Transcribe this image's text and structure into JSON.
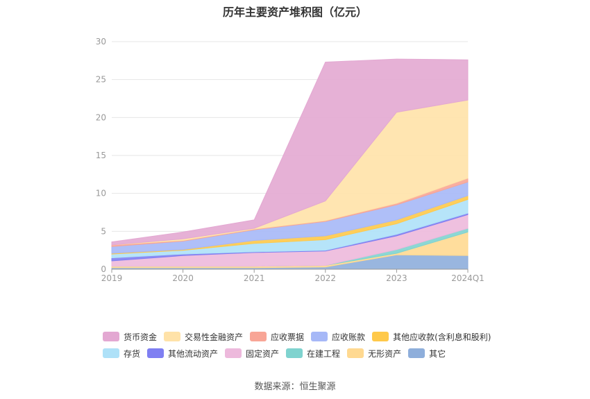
{
  "title": "历年主要资产堆积图（亿元）",
  "source": "数据来源：恒生聚源",
  "colors": {
    "axis": "#999999",
    "grid": "#e6e6e6"
  },
  "chart_data": {
    "type": "area",
    "stacked": true,
    "categories": [
      "2019",
      "2020",
      "2021",
      "2022",
      "2023",
      "2024Q1"
    ],
    "ylim": [
      0,
      30
    ],
    "yticks": [
      0,
      5,
      10,
      15,
      20,
      25,
      30
    ],
    "grid": true,
    "legend_position": "bottom",
    "series": [
      {
        "name": "其它",
        "color": "#8eaedb",
        "values": [
          0.2,
          0.2,
          0.2,
          0.3,
          1.9,
          1.8
        ]
      },
      {
        "name": "无形资产",
        "color": "#ffd991",
        "values": [
          0.2,
          0.2,
          0.2,
          0.2,
          0.2,
          3.1
        ]
      },
      {
        "name": "在建工程",
        "color": "#7fd3cf",
        "values": [
          0.0,
          0.0,
          0.0,
          0.0,
          0.5,
          0.5
        ]
      },
      {
        "name": "固定资产",
        "color": "#edb9dc",
        "values": [
          0.7,
          1.4,
          1.8,
          1.9,
          1.8,
          1.8
        ]
      },
      {
        "name": "其他流动资产",
        "color": "#7f7ff2",
        "values": [
          0.4,
          0.2,
          0.1,
          0.1,
          0.2,
          0.2
        ]
      },
      {
        "name": "存货",
        "color": "#aee1f8",
        "values": [
          0.5,
          0.5,
          1.1,
          1.4,
          1.4,
          1.8
        ]
      },
      {
        "name": "其他应收款(含利息和股利)",
        "color": "#ffc94a",
        "values": [
          0.1,
          0.1,
          0.4,
          0.5,
          0.5,
          0.5
        ]
      },
      {
        "name": "应收账款",
        "color": "#a6b8f7",
        "values": [
          0.9,
          1.1,
          1.4,
          1.9,
          2.0,
          1.8
        ]
      },
      {
        "name": "应收票据",
        "color": "#f8a596",
        "values": [
          0.2,
          0.1,
          0.1,
          0.1,
          0.2,
          0.5
        ]
      },
      {
        "name": "交易性金融资产",
        "color": "#ffe2a8",
        "values": [
          0.0,
          0.2,
          0.1,
          2.6,
          12.0,
          10.3
        ]
      },
      {
        "name": "货币资金",
        "color": "#e3a8d2",
        "values": [
          0.4,
          0.9,
          1.1,
          18.3,
          7.0,
          5.3
        ]
      }
    ],
    "legend_order": [
      "货币资金",
      "交易性金融资产",
      "应收票据",
      "应收账款",
      "其他应收款(含利息和股利)",
      "存货",
      "其他流动资产",
      "固定资产",
      "在建工程",
      "无形资产",
      "其它"
    ]
  }
}
